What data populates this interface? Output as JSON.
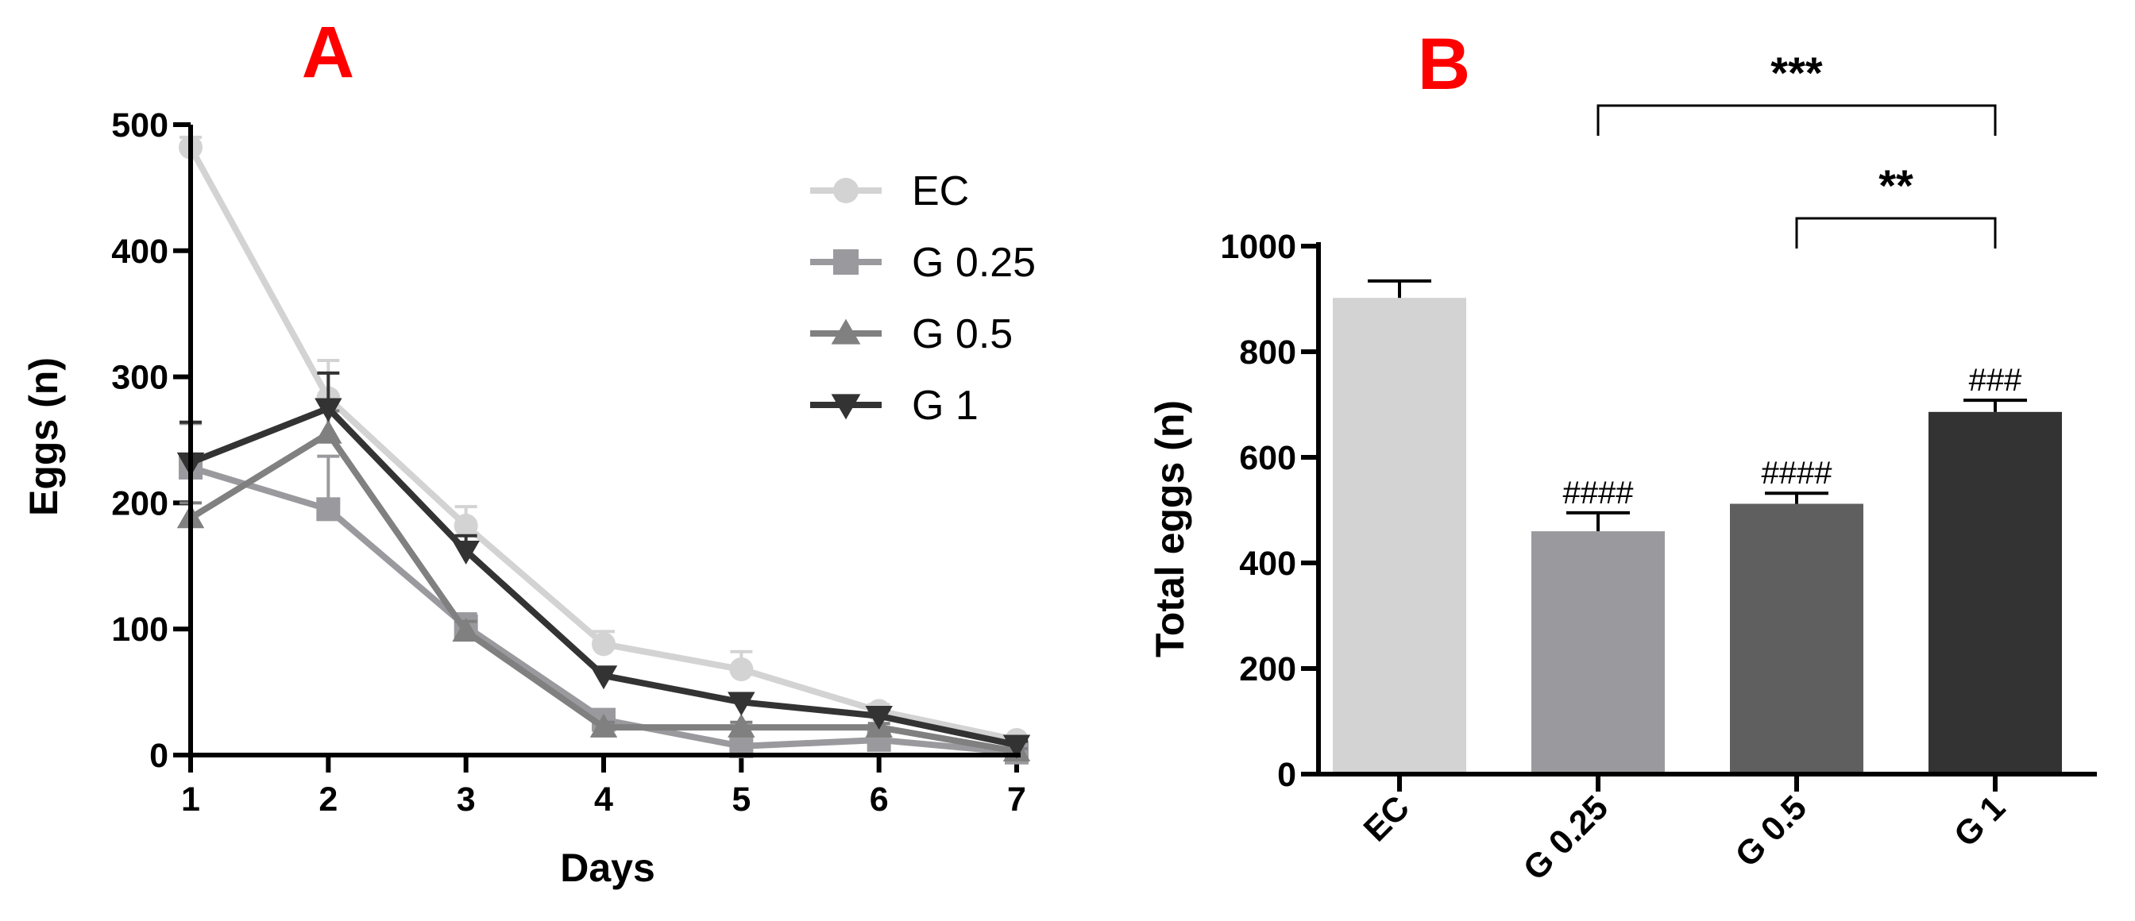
{
  "colors": {
    "EC": "#d3d3d3",
    "G 0.25": "#9a9a9e",
    "G 0.5": "#808080",
    "G 0.5_bar": "#5f5f5f",
    "G 1": "#333333",
    "panel_label": "#ff0000"
  },
  "chart_data": [
    {
      "panel": "A",
      "type": "line",
      "xlabel": "Days",
      "ylabel": "Eggs (n)",
      "x": [
        1,
        2,
        3,
        4,
        5,
        6,
        7
      ],
      "x_ticks": [
        "1",
        "2",
        "3",
        "4",
        "5",
        "6",
        "7"
      ],
      "xlim": [
        1,
        7
      ],
      "ylim": [
        0,
        500
      ],
      "y_ticks": [
        "0",
        "100",
        "200",
        "300",
        "400",
        "500"
      ],
      "legend_position": "top-right",
      "series": [
        {
          "name": "EC",
          "marker": "circle",
          "values": [
            482,
            283,
            182,
            88,
            68,
            35,
            12
          ],
          "errors": [
            8,
            30,
            15,
            10,
            14,
            5,
            3
          ]
        },
        {
          "name": "G 0.25",
          "marker": "square",
          "values": [
            228,
            195,
            102,
            28,
            7,
            12,
            2
          ],
          "errors": [
            35,
            42,
            10,
            4,
            3,
            4,
            2
          ]
        },
        {
          "name": "G 0.5",
          "marker": "triangle-up",
          "values": [
            188,
            255,
            98,
            22,
            22,
            22,
            3
          ],
          "errors": [
            12,
            18,
            8,
            4,
            4,
            3,
            2
          ]
        },
        {
          "name": "G 1",
          "marker": "triangle-down",
          "values": [
            232,
            275,
            162,
            63,
            42,
            31,
            8
          ],
          "errors": [
            32,
            28,
            12,
            6,
            6,
            5,
            3
          ]
        }
      ]
    },
    {
      "panel": "B",
      "type": "bar",
      "ylabel": "Total eggs (n)",
      "categories": [
        "EC",
        "G 0.25",
        "G 0.5",
        "G 1"
      ],
      "values": [
        902,
        460,
        512,
        686
      ],
      "errors": [
        32,
        35,
        20,
        22
      ],
      "ylim": [
        0,
        1000
      ],
      "y_ticks": [
        "0",
        "200",
        "400",
        "600",
        "800",
        "1000"
      ],
      "annotations": [
        "",
        "####",
        "####",
        "###"
      ],
      "significance": [
        {
          "from": "G 0.25",
          "to": "G 1",
          "label": "***"
        },
        {
          "from": "G 0.5",
          "to": "G 1",
          "label": "**"
        }
      ]
    }
  ]
}
